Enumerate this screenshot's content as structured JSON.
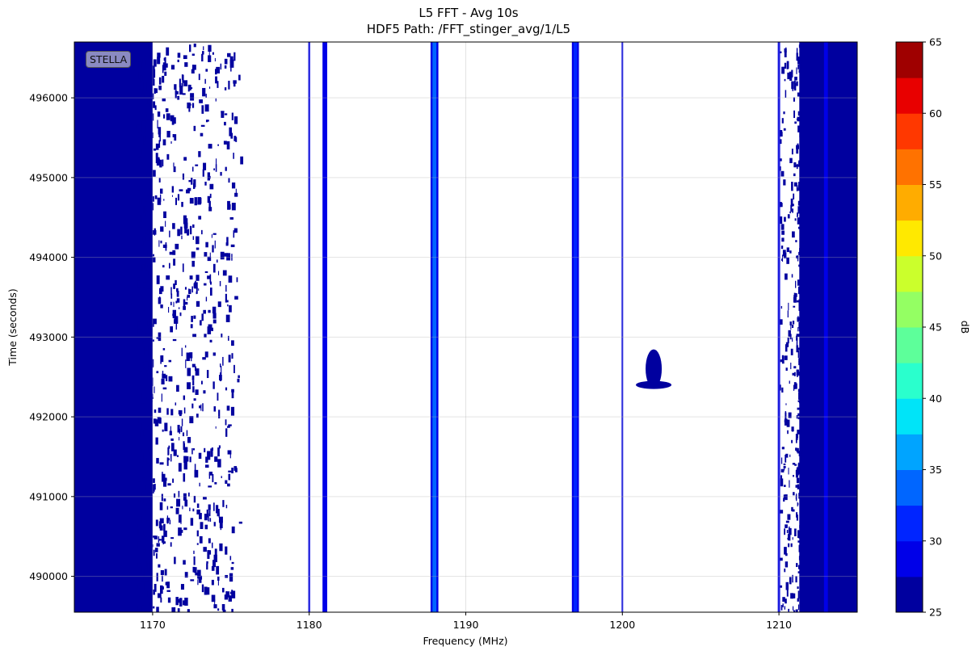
{
  "chart_data": {
    "type": "heatmap",
    "title": "L5 FFT - Avg 10s",
    "subtitle": "HDF5 Path: /FFT_stinger_avg/1/L5",
    "xlabel": "Frequency (MHz)",
    "ylabel": "Time (seconds)",
    "xlim": [
      1165,
      1215
    ],
    "ylim": [
      489550,
      496700
    ],
    "xticks": [
      1170,
      1180,
      1190,
      1200,
      1210
    ],
    "yticks": [
      490000,
      491000,
      492000,
      493000,
      494000,
      495000,
      496000
    ],
    "grid": true,
    "colorbar": {
      "label": "dB",
      "range": [
        25,
        65
      ],
      "ticks": [
        25,
        30,
        35,
        40,
        45,
        50,
        55,
        60,
        65
      ],
      "levels": [
        25,
        27.5,
        30,
        32.5,
        35,
        37.5,
        40,
        42.5,
        45,
        47.5,
        50,
        52.5,
        55,
        57.5,
        60,
        62.5,
        65
      ],
      "colors": [
        "#00009f",
        "#0000e8",
        "#0025ff",
        "#0066ff",
        "#00a4ff",
        "#00e4f8",
        "#2affcd",
        "#5dff9a",
        "#94ff63",
        "#cbff2c",
        "#ffe900",
        "#ffac00",
        "#ff7200",
        "#ff3800",
        "#e80000",
        "#9f0000"
      ]
    },
    "bands": [
      {
        "x0": 1165.0,
        "x1": 1170.0,
        "level_db": 26
      },
      {
        "x0": 1211.3,
        "x1": 1215.0,
        "level_db": 26
      }
    ],
    "lines": [
      {
        "x": 1180.0,
        "width_mhz": 0.12,
        "level_db": 29
      },
      {
        "x": 1181.0,
        "width_mhz": 0.3,
        "level_db": 29
      },
      {
        "x": 1188.0,
        "width_mhz": 0.5,
        "level_db": 34
      },
      {
        "x": 1197.0,
        "width_mhz": 0.45,
        "level_db": 32
      },
      {
        "x": 1200.0,
        "width_mhz": 0.1,
        "level_db": 26
      },
      {
        "x": 1210.0,
        "width_mhz": 0.15,
        "level_db": 28
      },
      {
        "x": 1213.0,
        "width_mhz": 0.25,
        "level_db": 29
      }
    ],
    "blob": {
      "x": 1202.0,
      "y": 492400,
      "level_db": 27
    }
  },
  "annotation": {
    "label": "STELLA"
  }
}
